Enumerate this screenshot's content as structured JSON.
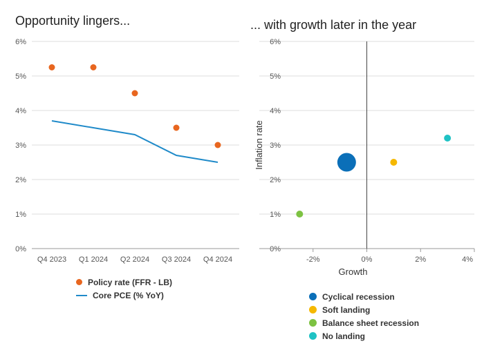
{
  "chart_data": [
    {
      "type": "line",
      "title": "Opportunity lingers...",
      "categories": [
        "Q4 2023",
        "Q1 2024",
        "Q2 2024",
        "Q3 2024",
        "Q4 2024"
      ],
      "ylim": [
        0,
        6
      ],
      "yticks": [
        "0%",
        "1%",
        "2%",
        "3%",
        "4%",
        "5%",
        "6%"
      ],
      "grid": true,
      "legend_position": "bottom",
      "series": [
        {
          "name": "Policy rate (FFR - LB)",
          "kind": "scatter",
          "color": "#e8661f",
          "values": [
            5.25,
            5.25,
            4.5,
            3.5,
            3.0
          ]
        },
        {
          "name": "Core PCE (% YoY)",
          "kind": "line",
          "color": "#1f8ac9",
          "values": [
            3.7,
            3.5,
            3.3,
            2.7,
            2.5
          ]
        }
      ]
    },
    {
      "type": "scatter",
      "title": "... with growth later in the year",
      "xlabel": "Growth",
      "ylabel": "Inflation rate",
      "xlim": [
        -4,
        4
      ],
      "ylim": [
        0,
        6
      ],
      "xticks": [
        {
          "v": -2,
          "label": "-2%"
        },
        {
          "v": 0,
          "label": "0%"
        },
        {
          "v": 2,
          "label": "2%"
        },
        {
          "v": 4,
          "label": "4%"
        }
      ],
      "yticks": [
        "0%",
        "1%",
        "2%",
        "3%",
        "4%",
        "5%",
        "6%"
      ],
      "grid": true,
      "legend_position": "bottom",
      "series": [
        {
          "name": "Cyclical recession",
          "color": "#0b6fb8",
          "x": -0.75,
          "y": 2.5,
          "size": "large"
        },
        {
          "name": "Soft landing",
          "color": "#f5b800",
          "x": 1.0,
          "y": 2.5,
          "size": "small"
        },
        {
          "name": "Balance sheet recession",
          "color": "#7dc242",
          "x": -2.5,
          "y": 1.0,
          "size": "small"
        },
        {
          "name": "No landing",
          "color": "#1fc2c4",
          "x": 3.0,
          "y": 3.2,
          "size": "small"
        }
      ]
    }
  ]
}
